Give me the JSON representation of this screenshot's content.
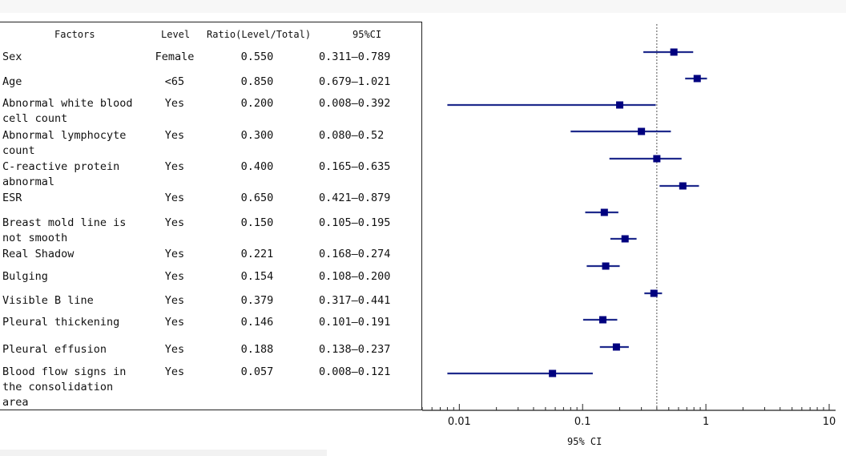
{
  "table": {
    "headers": {
      "factors": "Factors",
      "level": "Level",
      "ratio": "Ratio(Level/Total)",
      "ci": "95%CI"
    },
    "rows": [
      {
        "factor": "Sex",
        "level": "Female",
        "ratio": "0.550",
        "ci": "0.311—0.789"
      },
      {
        "factor": "Age",
        "level": "<65",
        "ratio": "0.850",
        "ci": "0.679—1.021"
      },
      {
        "factor": "Abnormal white blood cell count",
        "level": "Yes",
        "ratio": "0.200",
        "ci": "0.008—0.392"
      },
      {
        "factor": "Abnormal lymphocyte count",
        "level": "Yes",
        "ratio": "0.300",
        "ci": "0.080—0.52"
      },
      {
        "factor": "C-reactive protein abnormal",
        "level": "Yes",
        "ratio": "0.400",
        "ci": "0.165—0.635"
      },
      {
        "factor": "ESR",
        "level": "Yes",
        "ratio": "0.650",
        "ci": "0.421—0.879"
      },
      {
        "factor": "Breast mold line is not smooth",
        "level": "Yes",
        "ratio": "0.150",
        "ci": "0.105—0.195"
      },
      {
        "factor": "Real Shadow",
        "level": "Yes",
        "ratio": "0.221",
        "ci": "0.168—0.274"
      },
      {
        "factor": "Bulging",
        "level": "Yes",
        "ratio": "0.154",
        "ci": "0.108—0.200"
      },
      {
        "factor": "Visible B line",
        "level": "Yes",
        "ratio": "0.379",
        "ci": "0.317—0.441"
      },
      {
        "factor": "Pleural thickening",
        "level": "Yes",
        "ratio": "0.146",
        "ci": "0.101—0.191"
      },
      {
        "factor": "Pleural effusion",
        "level": "Yes",
        "ratio": "0.188",
        "ci": "0.138—0.237"
      },
      {
        "factor": "Blood flow signs in the consolidation area",
        "level": "Yes",
        "ratio": "0.057",
        "ci": "0.008—0.121"
      }
    ]
  },
  "chart_data": {
    "type": "forest",
    "xscale": "log",
    "xlim": [
      0.005,
      10
    ],
    "xticks": [
      0.01,
      0.1,
      1,
      10
    ],
    "xtick_labels": [
      "0.01",
      "0.1",
      "1",
      "10"
    ],
    "xlabel": "95% CI",
    "reference_line": 0.4,
    "series": [
      {
        "name": "Sex",
        "value": 0.55,
        "lower": 0.311,
        "upper": 0.789
      },
      {
        "name": "Age",
        "value": 0.85,
        "lower": 0.679,
        "upper": 1.021
      },
      {
        "name": "Abnormal white blood cell count",
        "value": 0.2,
        "lower": 0.008,
        "upper": 0.392
      },
      {
        "name": "Abnormal lymphocyte count",
        "value": 0.3,
        "lower": 0.08,
        "upper": 0.52
      },
      {
        "name": "C-reactive protein abnormal",
        "value": 0.4,
        "lower": 0.165,
        "upper": 0.635
      },
      {
        "name": "ESR",
        "value": 0.65,
        "lower": 0.421,
        "upper": 0.879
      },
      {
        "name": "Breast mold line is not smooth",
        "value": 0.15,
        "lower": 0.105,
        "upper": 0.195
      },
      {
        "name": "Real Shadow",
        "value": 0.221,
        "lower": 0.168,
        "upper": 0.274
      },
      {
        "name": "Bulging",
        "value": 0.154,
        "lower": 0.108,
        "upper": 0.2
      },
      {
        "name": "Visible B line",
        "value": 0.379,
        "lower": 0.317,
        "upper": 0.441
      },
      {
        "name": "Pleural thickening",
        "value": 0.146,
        "lower": 0.101,
        "upper": 0.191
      },
      {
        "name": "Pleural effusion",
        "value": 0.188,
        "lower": 0.138,
        "upper": 0.237
      },
      {
        "name": "Blood flow signs in the consolidation area",
        "value": 0.057,
        "lower": 0.008,
        "upper": 0.121
      }
    ],
    "colors": {
      "marker": "#00007f",
      "line": "#1f2a8c",
      "axis": "#222222",
      "reference": "#555555"
    }
  }
}
